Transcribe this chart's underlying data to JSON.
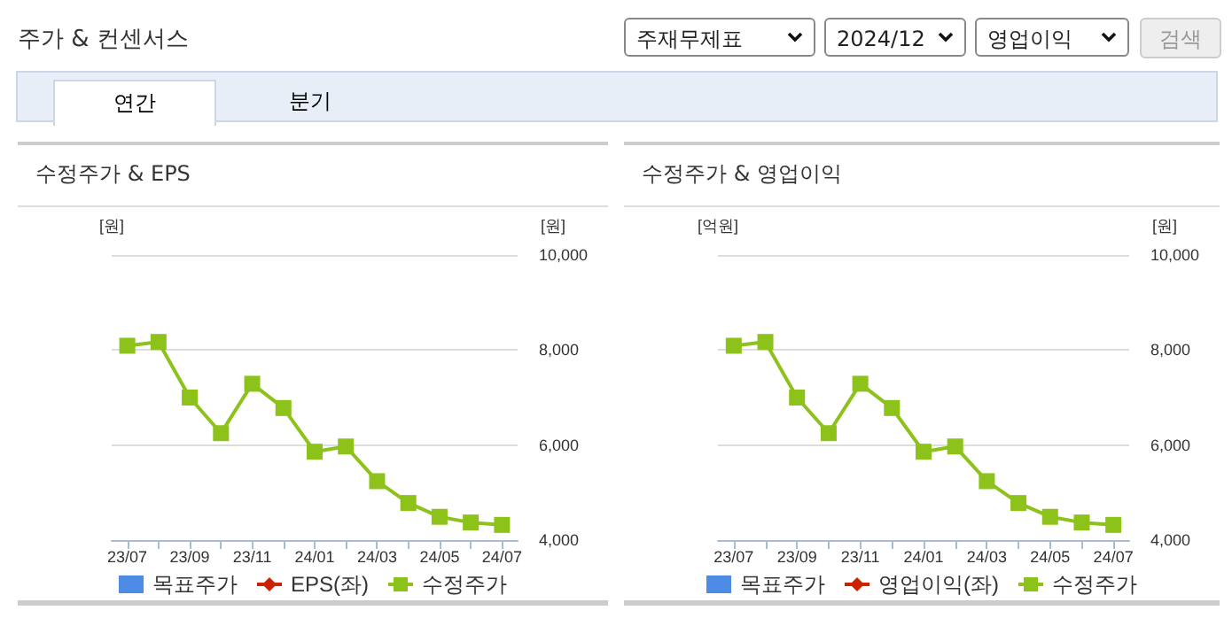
{
  "chart_data": [
    {
      "type": "line",
      "title": "수정주가 & EPS",
      "annotations": [
        "주가 & 컨센서스",
        "주재무제표",
        "2024/12",
        "영업이익",
        "검색",
        "연간",
        "분기"
      ],
      "categories": [
        "23/07",
        null,
        "23/09",
        null,
        "23/11",
        null,
        "24/01",
        null,
        "24/03",
        null,
        "24/05",
        null,
        "24/07"
      ],
      "ylabel": "[원]",
      "y2label": "[원]",
      "y2lim": [
        4000,
        10000
      ],
      "y2ticks": [
        {
          "value": 4000,
          "label": "4,000"
        },
        {
          "value": 6000,
          "label": "6,000"
        },
        {
          "value": 8000,
          "label": "8,000"
        },
        {
          "value": 10000,
          "label": "10,000"
        }
      ],
      "grid": "y",
      "legend": "bottom",
      "series": [
        {
          "name": "목표주가",
          "type": "scatter",
          "marker": "square",
          "color": "#1f6fdf",
          "axis": "y2",
          "values": [
            null,
            null,
            null,
            null,
            null,
            null,
            null,
            null,
            null,
            null,
            null,
            null,
            null
          ]
        },
        {
          "name": "EPS(좌)",
          "marker": "diamond",
          "color": "#cc2200",
          "axis": "y",
          "values": [
            null,
            null,
            null,
            null,
            null,
            null,
            null,
            null,
            null,
            null,
            null,
            null,
            null
          ]
        },
        {
          "name": "수정주가",
          "marker": "square",
          "color": "#8cc21a",
          "axis": "y2",
          "values": [
            8090,
            8170,
            7000,
            6250,
            7290,
            6780,
            5860,
            5970,
            5240,
            4780,
            4490,
            4370,
            4320
          ]
        }
      ]
    },
    {
      "type": "line",
      "title": "수정주가 & 영업이익",
      "categories": [
        "23/07",
        null,
        "23/09",
        null,
        "23/11",
        null,
        "24/01",
        null,
        "24/03",
        null,
        "24/05",
        null,
        "24/07"
      ],
      "ylabel": "[억원]",
      "y2label": "[원]",
      "y2lim": [
        4000,
        10000
      ],
      "y2ticks": [
        {
          "value": 4000,
          "label": "4,000"
        },
        {
          "value": 6000,
          "label": "6,000"
        },
        {
          "value": 8000,
          "label": "8,000"
        },
        {
          "value": 10000,
          "label": "10,000"
        }
      ],
      "grid": "y",
      "legend": "bottom",
      "series": [
        {
          "name": "목표주가",
          "type": "scatter",
          "marker": "square",
          "color": "#1f6fdf",
          "axis": "y2",
          "values": [
            null,
            null,
            null,
            null,
            null,
            null,
            null,
            null,
            null,
            null,
            null,
            null,
            null
          ]
        },
        {
          "name": "영업이익(좌)",
          "marker": "diamond",
          "color": "#cc2200",
          "axis": "y",
          "values": [
            null,
            null,
            null,
            null,
            null,
            null,
            null,
            null,
            null,
            null,
            null,
            null,
            null
          ]
        },
        {
          "name": "수정주가",
          "marker": "square",
          "color": "#8cc21a",
          "axis": "y2",
          "values": [
            8090,
            8170,
            7000,
            6250,
            7290,
            6780,
            5860,
            5970,
            5240,
            4780,
            4490,
            4370,
            4320
          ]
        }
      ]
    }
  ]
}
